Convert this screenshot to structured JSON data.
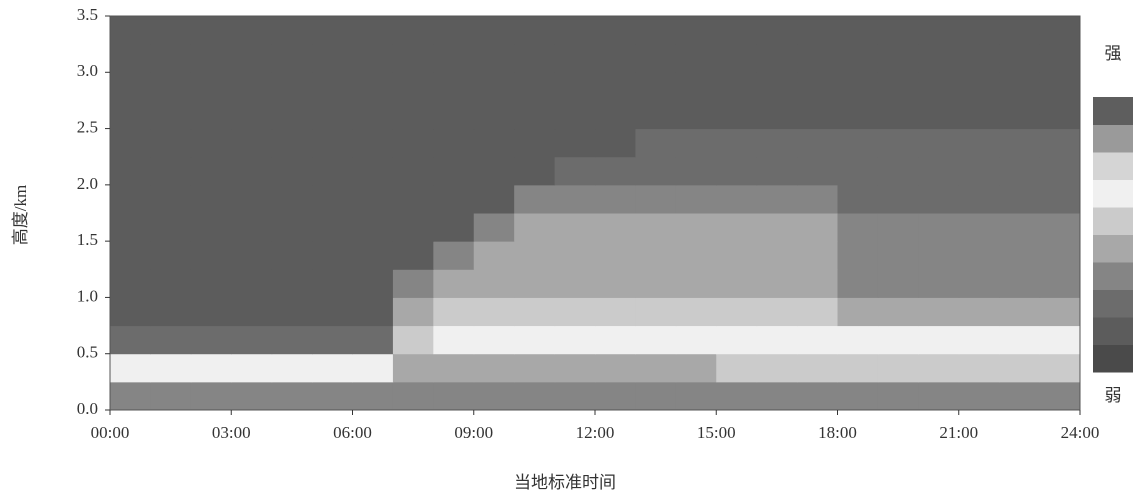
{
  "chart_data": {
    "type": "heatmap",
    "y_label": "高度/km",
    "x_label": "当地标准时间",
    "colorbar_top_label": "强",
    "colorbar_bottom_label": "弱",
    "xlim": [
      0,
      24
    ],
    "xticks": [
      {
        "value": 0,
        "label": "00:00"
      },
      {
        "value": 3,
        "label": "03:00"
      },
      {
        "value": 6,
        "label": "06:00"
      },
      {
        "value": 9,
        "label": "09:00"
      },
      {
        "value": 12,
        "label": "12:00"
      },
      {
        "value": 15,
        "label": "15:00"
      },
      {
        "value": 18,
        "label": "18:00"
      },
      {
        "value": 21,
        "label": "21:00"
      },
      {
        "value": 24,
        "label": "24:00"
      }
    ],
    "ylim": [
      0,
      3.5
    ],
    "yticks": [
      {
        "value": 0,
        "label": "0.0"
      },
      0.5,
      {
        "value": 1,
        "label": "1.0"
      },
      1.5,
      {
        "value": 2,
        "label": "2.0"
      },
      2.5,
      {
        "value": 3,
        "label": "3.0"
      },
      3.5
    ],
    "x_bins": [
      0,
      1,
      2,
      3,
      4,
      5,
      6,
      7,
      8,
      9,
      10,
      11,
      12,
      13,
      14,
      15,
      16,
      17,
      18,
      19,
      20,
      21,
      22,
      23,
      24
    ],
    "y_bins": [
      0,
      0.25,
      0.5,
      0.75,
      1,
      1.25,
      1.5,
      1.75,
      2,
      2.25,
      2.5,
      2.75,
      3,
      3.25,
      3.5
    ],
    "colorscale": [
      "#4a4a4a",
      "#5c5c5c",
      "#6c6c6c",
      "#858585",
      "#a8a8a8",
      "#cbcbcb",
      "#f0f0f0",
      "#d5d5d5",
      "#9a9a9a",
      "#5e5e5e"
    ],
    "z": [
      [
        3,
        3,
        3,
        3,
        3,
        3,
        3,
        3,
        3,
        3,
        3,
        3,
        3,
        3,
        3,
        3,
        3,
        3,
        3,
        3,
        3,
        3,
        3,
        3
      ],
      [
        6,
        6,
        6,
        6,
        6,
        6,
        6,
        4,
        4,
        4,
        4,
        4,
        4,
        4,
        4,
        5,
        5,
        5,
        5,
        5,
        5,
        5,
        5,
        5
      ],
      [
        2,
        2,
        2,
        2,
        2,
        2,
        2,
        5,
        6,
        6,
        6,
        6,
        6,
        6,
        6,
        6,
        6,
        6,
        6,
        6,
        6,
        6,
        6,
        6
      ],
      [
        1,
        1,
        1,
        1,
        1,
        1,
        1,
        4,
        5,
        5,
        5,
        5,
        5,
        5,
        5,
        5,
        5,
        5,
        4,
        4,
        4,
        4,
        4,
        4
      ],
      [
        1,
        1,
        1,
        1,
        1,
        1,
        1,
        3,
        4,
        4,
        4,
        4,
        4,
        4,
        4,
        4,
        4,
        4,
        3,
        3,
        3,
        3,
        3,
        3
      ],
      [
        1,
        1,
        1,
        1,
        1,
        1,
        1,
        1,
        3,
        4,
        4,
        4,
        4,
        4,
        4,
        4,
        4,
        4,
        3,
        3,
        3,
        3,
        3,
        3
      ],
      [
        1,
        1,
        1,
        1,
        1,
        1,
        1,
        1,
        1,
        3,
        4,
        4,
        4,
        4,
        4,
        4,
        4,
        4,
        3,
        3,
        3,
        3,
        3,
        3
      ],
      [
        1,
        1,
        1,
        1,
        1,
        1,
        1,
        1,
        1,
        1,
        3,
        3,
        3,
        3,
        3,
        3,
        3,
        3,
        2,
        2,
        2,
        2,
        2,
        2
      ],
      [
        1,
        1,
        1,
        1,
        1,
        1,
        1,
        1,
        1,
        1,
        1,
        2,
        2,
        2,
        2,
        2,
        2,
        2,
        2,
        2,
        2,
        2,
        2,
        2
      ],
      [
        1,
        1,
        1,
        1,
        1,
        1,
        1,
        1,
        1,
        1,
        1,
        1,
        1,
        2,
        2,
        2,
        2,
        2,
        2,
        2,
        2,
        2,
        2,
        2
      ],
      [
        1,
        1,
        1,
        1,
        1,
        1,
        1,
        1,
        1,
        1,
        1,
        1,
        1,
        1,
        1,
        1,
        1,
        1,
        1,
        1,
        1,
        1,
        1,
        1
      ],
      [
        1,
        1,
        1,
        1,
        1,
        1,
        1,
        1,
        1,
        1,
        1,
        1,
        1,
        1,
        1,
        1,
        1,
        1,
        1,
        1,
        1,
        1,
        1,
        1
      ],
      [
        1,
        1,
        1,
        1,
        1,
        1,
        1,
        1,
        1,
        1,
        1,
        1,
        1,
        1,
        1,
        1,
        1,
        1,
        1,
        1,
        1,
        1,
        1,
        1
      ],
      [
        1,
        1,
        1,
        1,
        1,
        1,
        1,
        1,
        1,
        1,
        1,
        1,
        1,
        1,
        1,
        1,
        1,
        1,
        1,
        1,
        1,
        1,
        1,
        1
      ]
    ]
  }
}
